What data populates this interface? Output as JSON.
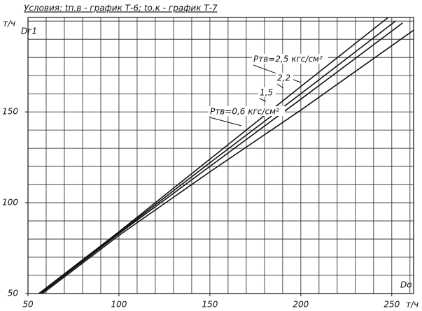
{
  "chart_data": {
    "type": "line",
    "title": "Условия: tп.в - график Т-6; tо.к - график Т-7",
    "y_unit": "т/ч",
    "y_label": "Dг1",
    "x_label": "Dо",
    "x_unit": "т/ч",
    "xlim": [
      50,
      262
    ],
    "ylim": [
      50,
      202
    ],
    "xticks": [
      50,
      100,
      150,
      200,
      250
    ],
    "yticks": [
      50,
      100,
      150
    ],
    "x_gridlines": [
      60,
      70,
      80,
      90,
      100,
      110,
      120,
      130,
      140,
      150,
      160,
      170,
      180,
      190,
      200,
      210,
      220,
      230,
      240,
      250,
      260
    ],
    "y_gridlines": [
      60,
      70,
      80,
      90,
      100,
      110,
      120,
      130,
      140,
      150,
      160,
      170,
      180,
      190,
      200
    ],
    "grid": true,
    "series": [
      {
        "name": "Pтв=2,5 кгс/см²",
        "color": "#111111",
        "x": [
          56,
          100,
          150,
          200,
          248
        ],
        "values": [
          50,
          84,
          124,
          164,
          202
        ]
      },
      {
        "name": "2,2",
        "color": "#111111",
        "x": [
          56,
          100,
          150,
          200,
          252
        ],
        "values": [
          50,
          83.5,
          122,
          160,
          200
        ]
      },
      {
        "name": "1,5",
        "color": "#111111",
        "x": [
          57,
          100,
          150,
          200,
          256
        ],
        "values": [
          50,
          83,
          120,
          157,
          199
        ]
      },
      {
        "name": "Pтв=0,6 кгс/см²",
        "color": "#111111",
        "x": [
          58,
          100,
          150,
          200,
          262
        ],
        "values": [
          50,
          82,
          117,
          151,
          195
        ]
      }
    ]
  }
}
